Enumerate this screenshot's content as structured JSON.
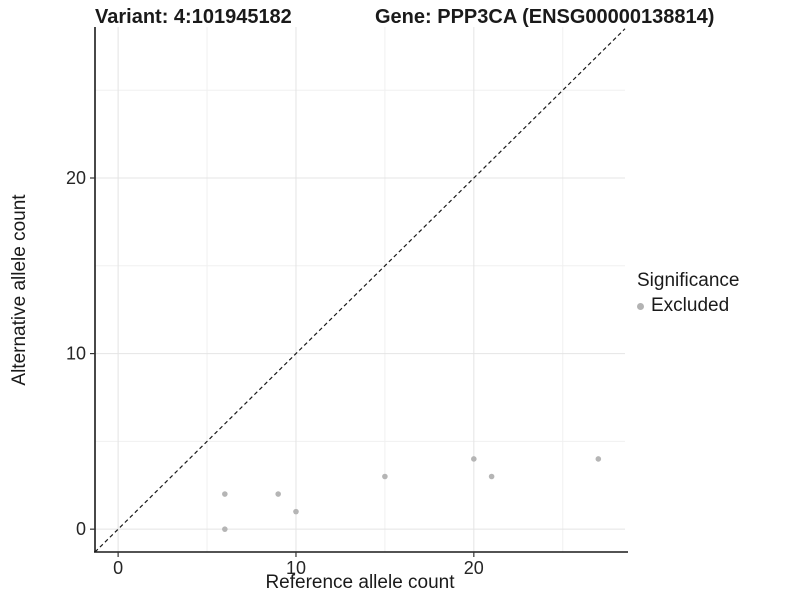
{
  "header": {
    "variant_title": "Variant: 4:101945182",
    "gene_title": "Gene: PPP3CA (ENSG00000138814)"
  },
  "legend": {
    "title": "Significance",
    "items": [
      {
        "label": "Excluded",
        "color": "#b3b3b3"
      }
    ]
  },
  "colors": {
    "point": "#b5b5b5",
    "legend_key": "#b3b3b3",
    "grid_major": "#e4e4e4",
    "grid_minor": "#f0f0f0",
    "axis_line": "#1a1a1a",
    "tick_mark": "#333333",
    "reference_line": "#1a1a1a",
    "text": "#1a1a1a"
  },
  "chart_data": {
    "type": "scatter",
    "title": "Variant: 4:101945182",
    "subtitle": "Gene: PPP3CA (ENSG00000138814)",
    "xlabel": "Reference allele count",
    "ylabel": "Alternative allele count",
    "xlim": [
      -1.3,
      28.5
    ],
    "ylim": [
      -1.3,
      28.6
    ],
    "x_ticks": [
      0,
      10,
      20
    ],
    "y_ticks": [
      0,
      10,
      20
    ],
    "x_minor_ticks": [
      5,
      15,
      25
    ],
    "y_minor_ticks": [
      5,
      15,
      25
    ],
    "grid": true,
    "legend_position": "right",
    "legend_title": "Significance",
    "series": [
      {
        "name": "Excluded",
        "color": "#b5b5b5",
        "points": [
          [
            6,
            0
          ],
          [
            6,
            2
          ],
          [
            9,
            2
          ],
          [
            10,
            1
          ],
          [
            15,
            3
          ],
          [
            20,
            4
          ],
          [
            21,
            3
          ],
          [
            27,
            4
          ]
        ]
      }
    ],
    "reference_line": {
      "slope": 1,
      "intercept": 0,
      "style": "dashed"
    }
  }
}
